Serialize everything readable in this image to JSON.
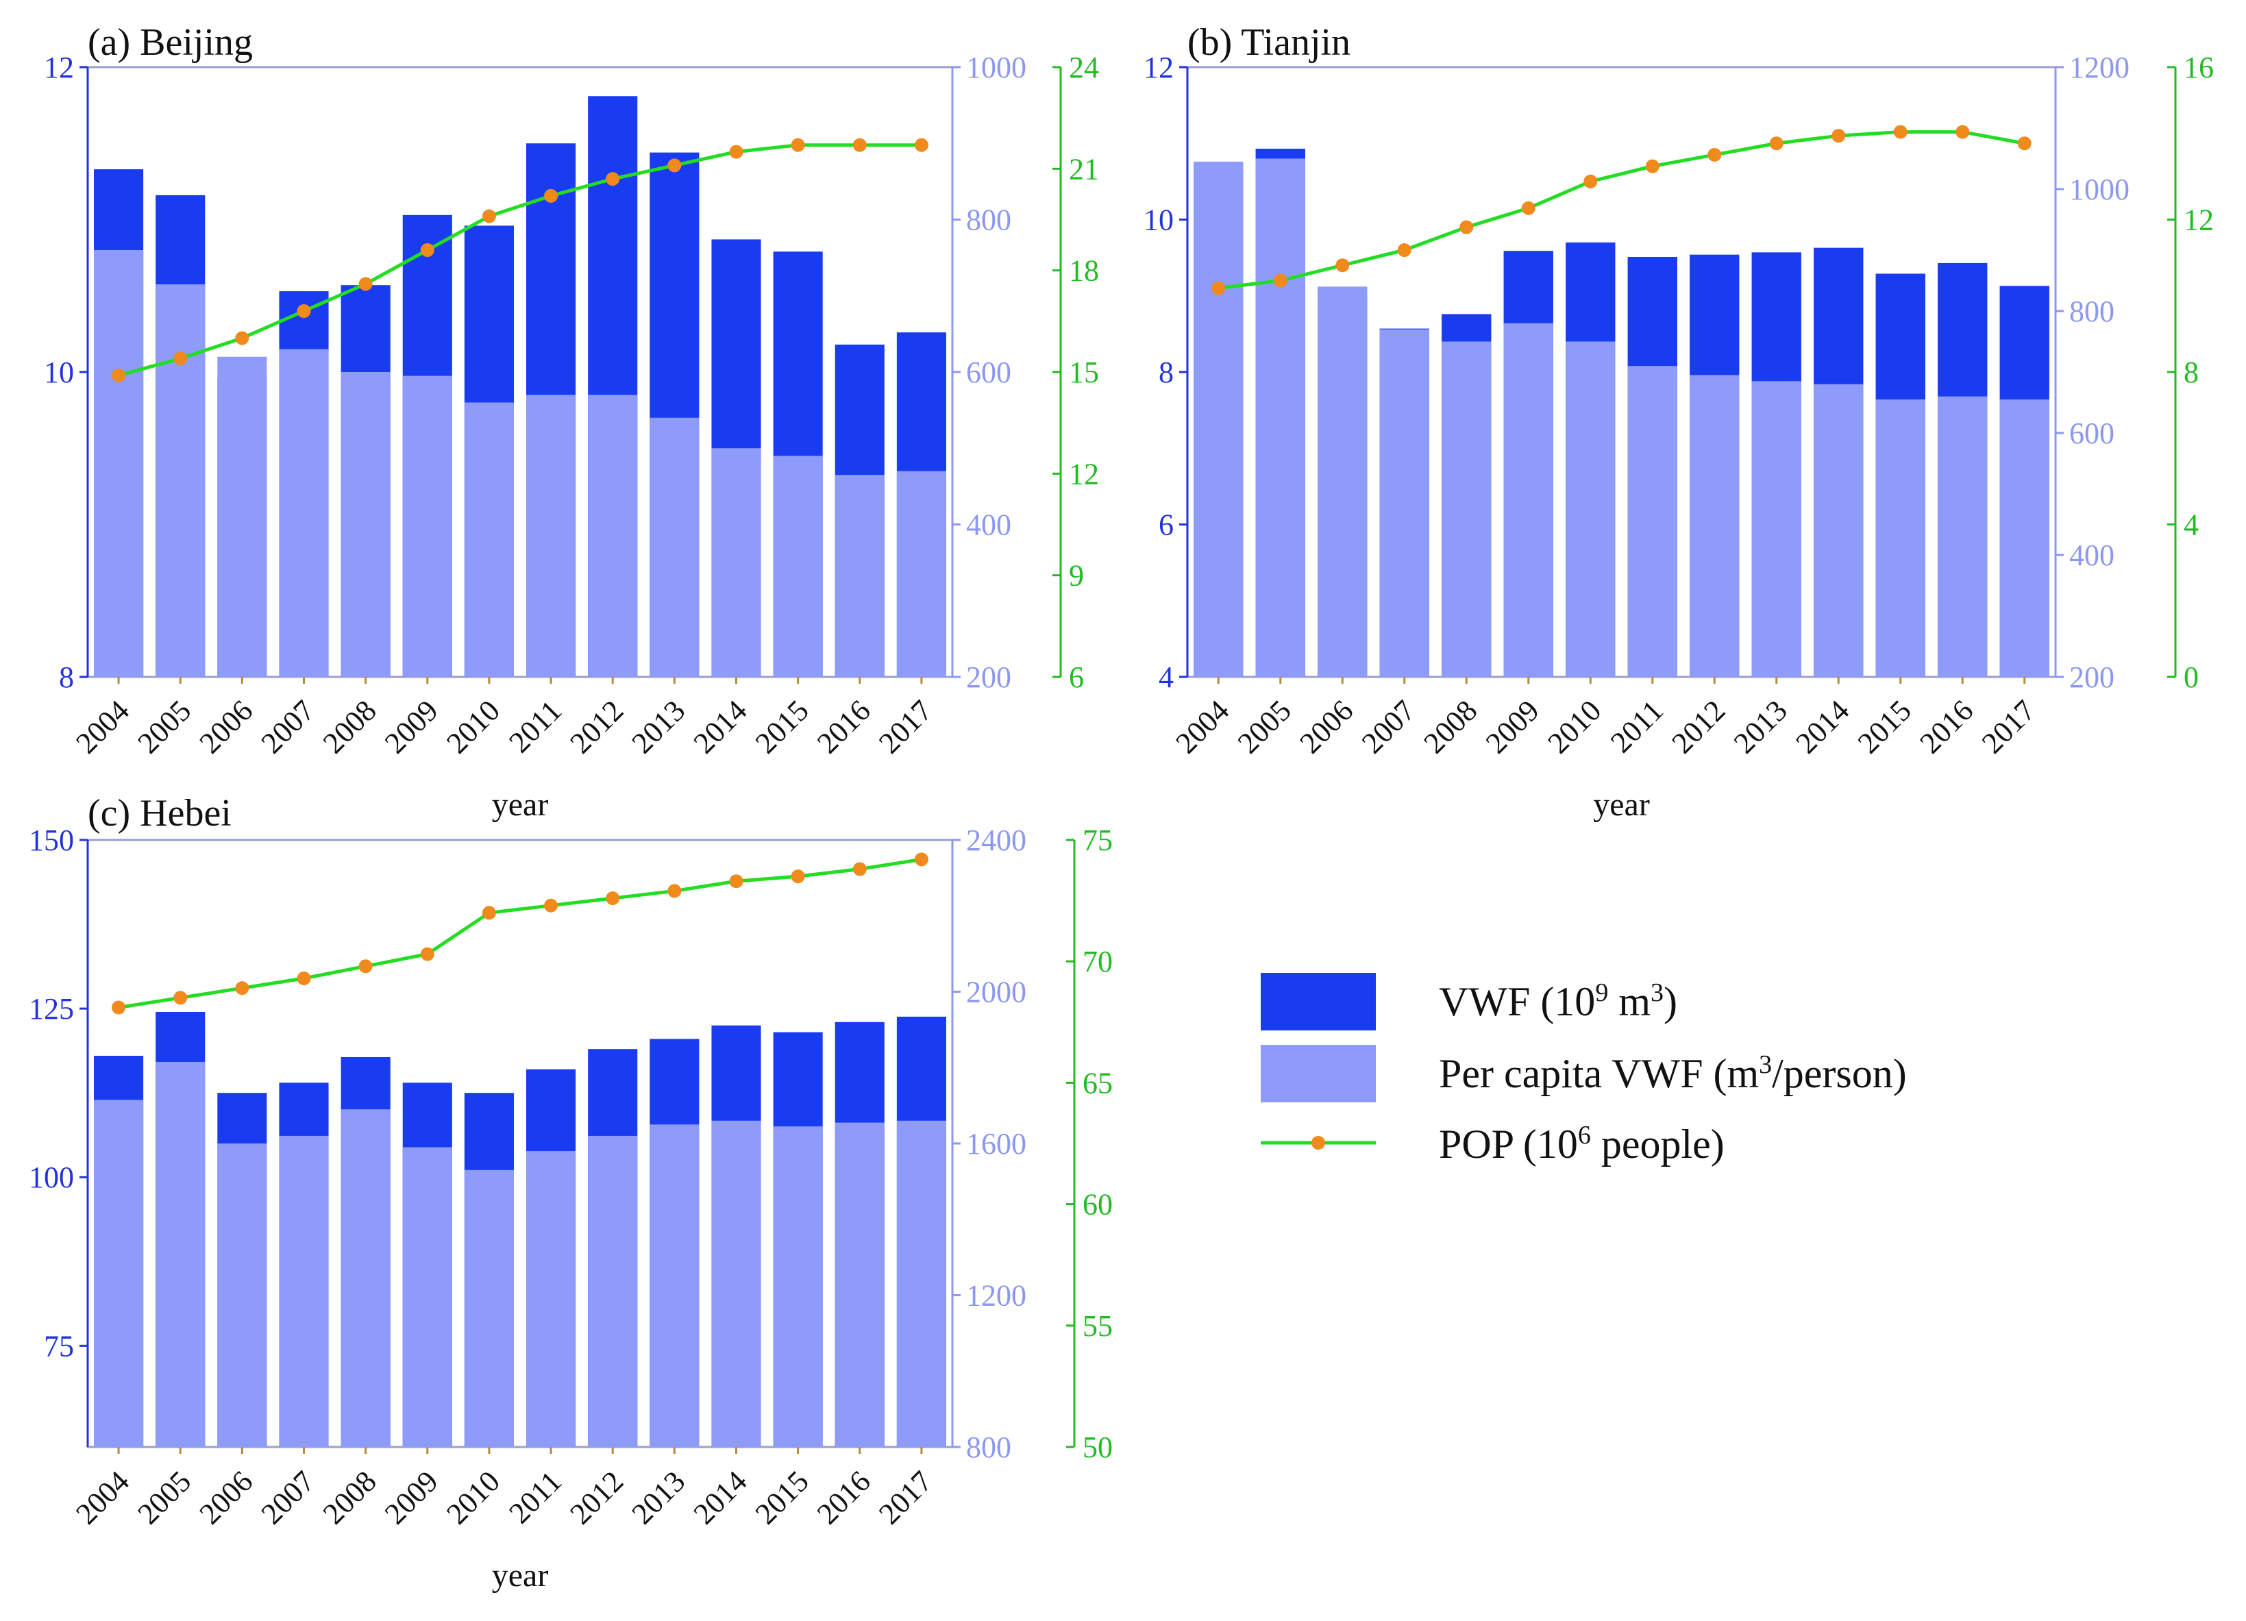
{
  "colors": {
    "vwf": "#1a3cf0",
    "per_capita": "#8e9bf8",
    "pop_line": "#22dd22",
    "pop_marker": "#f08a1c",
    "left_axis_text": "#2233dd",
    "mid_axis_text": "#8c97f0",
    "right_axis_text": "#22bb22"
  },
  "legend": {
    "vwf": {
      "base": "VWF (10",
      "sup": "9",
      "mid": " m",
      "sup2": "3",
      "end": ")"
    },
    "per_capita": {
      "base": "Per capita VWF (m",
      "sup": "3",
      "end": "/person)"
    },
    "pop": {
      "base": "POP (10",
      "sup": "6",
      "end": " people)"
    }
  },
  "chart_data": [
    {
      "type": "bar",
      "title": "(a) Beijing",
      "xlabel": "year",
      "categories": [
        "2004",
        "2005",
        "2006",
        "2007",
        "2008",
        "2009",
        "2010",
        "2011",
        "2012",
        "2013",
        "2014",
        "2015",
        "2016",
        "2017"
      ],
      "y_left": {
        "label": "VWF (10^9 m^3)",
        "lim": [
          8,
          12
        ],
        "ticks": [
          "8",
          "10",
          "12"
        ]
      },
      "y_mid": {
        "label": "Per capita VWF (m^3/person)",
        "lim": [
          200,
          1000
        ],
        "ticks": [
          "200",
          "400",
          "600",
          "800",
          "1000"
        ]
      },
      "y_right": {
        "label": "POP (10^6 people)",
        "lim": [
          6,
          24
        ],
        "ticks": [
          "6",
          "9",
          "12",
          "15",
          "18",
          "21",
          "24"
        ]
      },
      "series": [
        {
          "name": "VWF",
          "axis": "left",
          "values": [
            11.33,
            11.16,
            9.96,
            10.53,
            10.57,
            11.03,
            10.96,
            11.5,
            11.81,
            11.44,
            10.87,
            10.79,
            10.18,
            10.26
          ]
        },
        {
          "name": "Per capita VWF",
          "axis": "mid",
          "values": [
            760,
            715,
            620,
            630,
            600,
            595,
            560,
            570,
            570,
            540,
            500,
            490,
            465,
            470
          ]
        },
        {
          "name": "POP",
          "axis": "right",
          "values": [
            14.9,
            15.4,
            16.0,
            16.8,
            17.6,
            18.6,
            19.6,
            20.2,
            20.7,
            21.1,
            21.5,
            21.7,
            21.7,
            21.7
          ]
        }
      ]
    },
    {
      "type": "bar",
      "title": "(b) Tianjin",
      "xlabel": "year",
      "categories": [
        "2004",
        "2005",
        "2006",
        "2007",
        "2008",
        "2009",
        "2010",
        "2011",
        "2012",
        "2013",
        "2014",
        "2015",
        "2016",
        "2017"
      ],
      "y_left": {
        "label": "VWF (10^9 m^3)",
        "lim": [
          4,
          12
        ],
        "ticks": [
          "4",
          "6",
          "8",
          "10",
          "12"
        ]
      },
      "y_mid": {
        "label": "Per capita VWF (m^3/person)",
        "lim": [
          200,
          1200
        ],
        "ticks": [
          "200",
          "400",
          "600",
          "800",
          "1000",
          "1200"
        ]
      },
      "y_right": {
        "label": "POP (10^6 people)",
        "lim": [
          0,
          16
        ],
        "ticks": [
          "0",
          "4",
          "8",
          "12",
          "16"
        ]
      },
      "series": [
        {
          "name": "VWF",
          "axis": "left",
          "values": [
            10.68,
            10.93,
            8.98,
            8.57,
            8.76,
            9.59,
            9.7,
            9.51,
            9.54,
            9.57,
            9.63,
            9.29,
            9.43,
            9.13
          ]
        },
        {
          "name": "Per capita VWF",
          "axis": "mid",
          "values": [
            1045,
            1050,
            840,
            770,
            750,
            780,
            750,
            710,
            695,
            685,
            680,
            655,
            660,
            655
          ]
        },
        {
          "name": "POP",
          "axis": "right",
          "values": [
            10.2,
            10.4,
            10.8,
            11.2,
            11.8,
            12.3,
            13.0,
            13.4,
            13.7,
            14.0,
            14.2,
            14.3,
            14.3,
            14.0
          ]
        }
      ]
    },
    {
      "type": "bar",
      "title": "(c) Hebei",
      "xlabel": "year",
      "categories": [
        "2004",
        "2005",
        "2006",
        "2007",
        "2008",
        "2009",
        "2010",
        "2011",
        "2012",
        "2013",
        "2014",
        "2015",
        "2016",
        "2017"
      ],
      "y_left": {
        "label": "VWF (10^9 m^3)",
        "lim": [
          60,
          150
        ],
        "ticks": [
          "75",
          "100",
          "125",
          "150"
        ]
      },
      "y_mid": {
        "label": "Per capita VWF (m^3/person)",
        "lim": [
          800,
          2400
        ],
        "ticks": [
          "800",
          "1200",
          "1600",
          "2000",
          "2400"
        ]
      },
      "y_right": {
        "label": "POP (10^6 people)",
        "lim": [
          50,
          75
        ],
        "ticks": [
          "50",
          "55",
          "60",
          "65",
          "70",
          "75"
        ]
      },
      "series": [
        {
          "name": "VWF",
          "axis": "left",
          "values": [
            118.0,
            124.5,
            112.5,
            114.0,
            117.8,
            114.0,
            112.5,
            116.0,
            119.0,
            120.5,
            122.5,
            121.5,
            123.0,
            123.8
          ]
        },
        {
          "name": "Per capita VWF",
          "axis": "mid",
          "values": [
            1715,
            1815,
            1600,
            1620,
            1690,
            1590,
            1530,
            1580,
            1620,
            1650,
            1660,
            1645,
            1655,
            1660
          ]
        },
        {
          "name": "POP",
          "axis": "right",
          "values": [
            68.1,
            68.5,
            68.9,
            69.3,
            69.8,
            70.3,
            72.0,
            72.3,
            72.6,
            72.9,
            73.3,
            73.5,
            73.8,
            74.2
          ]
        }
      ]
    }
  ]
}
